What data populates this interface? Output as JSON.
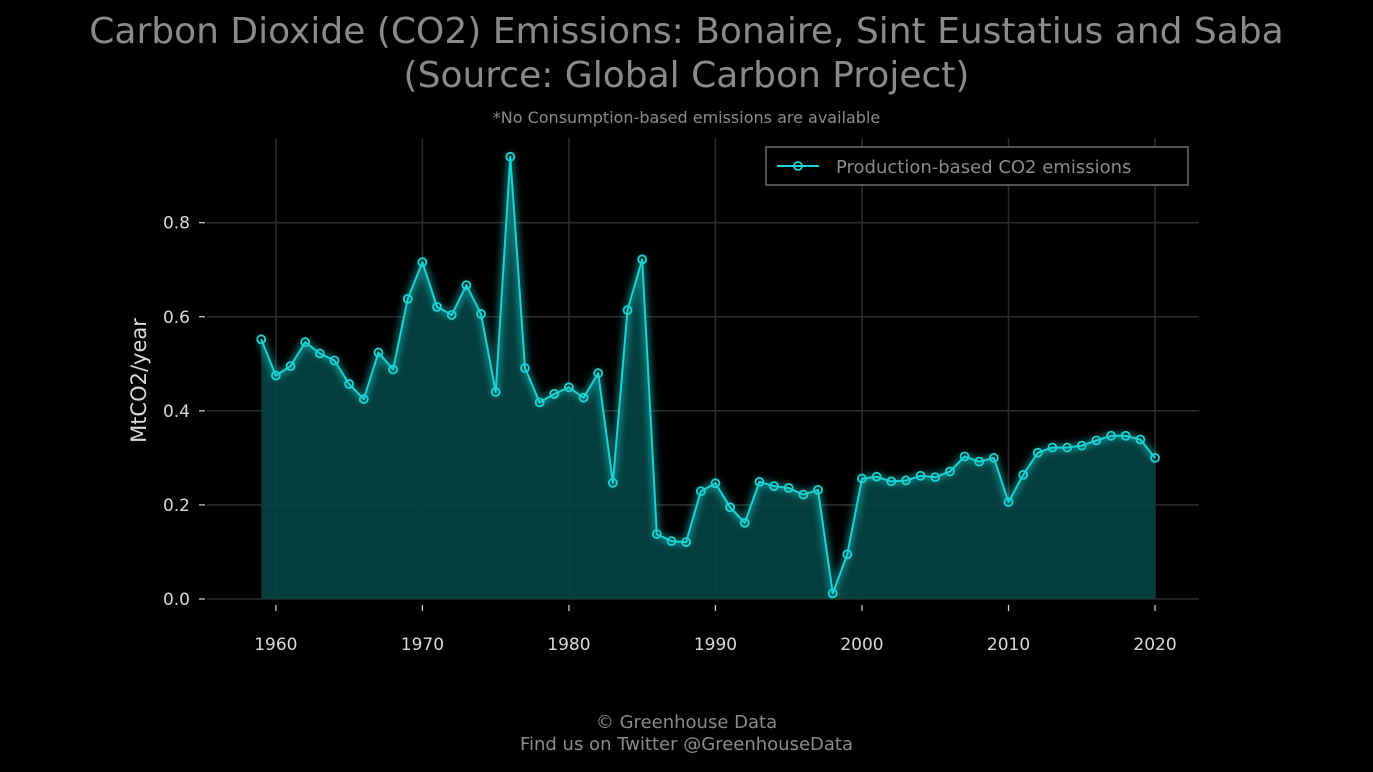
{
  "title_line1": "Carbon Dioxide (CO2) Emissions: Bonaire, Sint Eustatius and Saba",
  "title_line2": "(Source: Global Carbon Project)",
  "subtitle": "*No Consumption-based emissions are available",
  "footer": {
    "line1": "© Greenhouse Data",
    "line2": "Find us on Twitter @GreenhouseData"
  },
  "colors": {
    "background": "#000000",
    "line": "#19d3d3",
    "fill": "#054545",
    "grid": "#2b2b2b",
    "text_muted": "#8a8a8a",
    "tick_text": "#d8d8d8"
  },
  "chart_data": {
    "type": "area",
    "xlabel": "",
    "ylabel": "MtCO2/year",
    "xlim": [
      1955.3,
      2023
    ],
    "ylim": [
      0,
      0.98
    ],
    "x_ticks": [
      1960,
      1970,
      1980,
      1990,
      2000,
      2010,
      2020
    ],
    "y_ticks": [
      0.0,
      0.2,
      0.4,
      0.6,
      0.8
    ],
    "y_tick_labels": [
      "0.0",
      "0.2",
      "0.4",
      "0.6",
      "0.8"
    ],
    "grid": true,
    "legend_position": "top-right",
    "series": [
      {
        "name": "Production-based CO2 emissions",
        "x": [
          1959,
          1960,
          1961,
          1962,
          1963,
          1964,
          1965,
          1966,
          1967,
          1968,
          1969,
          1970,
          1971,
          1972,
          1973,
          1974,
          1975,
          1976,
          1977,
          1978,
          1979,
          1980,
          1981,
          1982,
          1983,
          1984,
          1985,
          1986,
          1987,
          1988,
          1989,
          1990,
          1991,
          1992,
          1993,
          1994,
          1995,
          1996,
          1997,
          1998,
          1999,
          2000,
          2001,
          2002,
          2003,
          2004,
          2005,
          2006,
          2007,
          2008,
          2009,
          2010,
          2011,
          2012,
          2013,
          2014,
          2015,
          2016,
          2017,
          2018,
          2019,
          2020
        ],
        "y": [
          0.552,
          0.475,
          0.495,
          0.546,
          0.522,
          0.507,
          0.457,
          0.425,
          0.524,
          0.488,
          0.638,
          0.716,
          0.621,
          0.604,
          0.667,
          0.606,
          0.44,
          0.94,
          0.491,
          0.418,
          0.436,
          0.45,
          0.428,
          0.48,
          0.247,
          0.614,
          0.722,
          0.138,
          0.123,
          0.121,
          0.229,
          0.246,
          0.195,
          0.162,
          0.249,
          0.24,
          0.236,
          0.222,
          0.232,
          0.012,
          0.095,
          0.256,
          0.26,
          0.25,
          0.252,
          0.262,
          0.259,
          0.271,
          0.303,
          0.292,
          0.3,
          0.206,
          0.264,
          0.311,
          0.322,
          0.322,
          0.326,
          0.337,
          0.347,
          0.347,
          0.339,
          0.3
        ]
      }
    ]
  }
}
